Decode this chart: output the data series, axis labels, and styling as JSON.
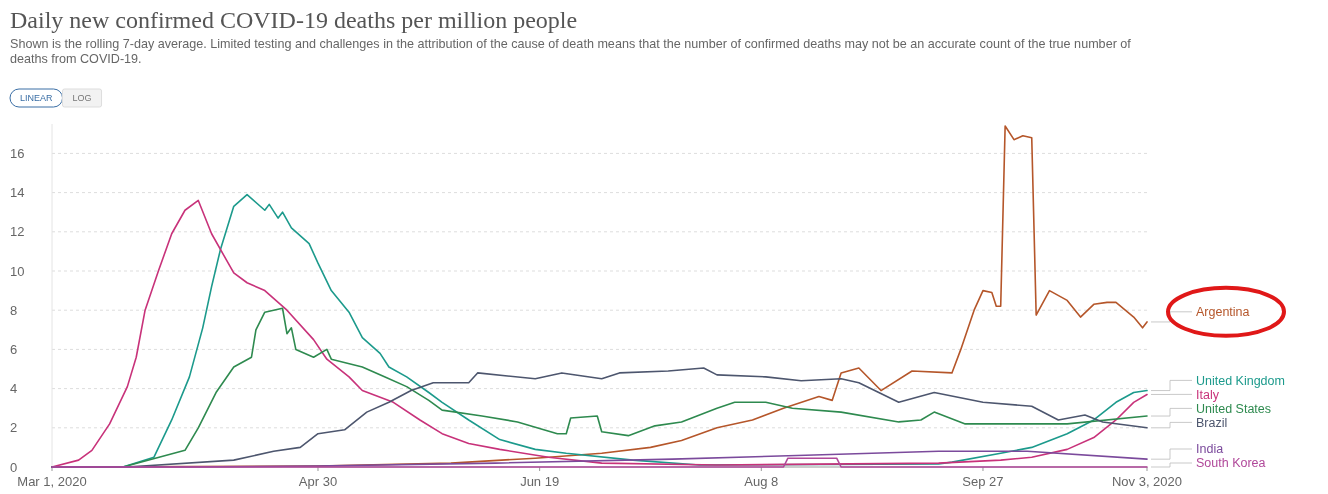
{
  "chart_data": {
    "type": "line",
    "title": "Daily new confirmed COVID-19 deaths per million people",
    "subtitle": "Shown is the rolling 7-day average. Limited testing and challenges in the attribution of the cause of death means that the number of confirmed deaths may not be an accurate count of the true number of deaths from COVID-19.",
    "annotations": [
      "LINEAR",
      "LOG"
    ],
    "xlim": [
      "2020-03-01",
      "2020-11-03"
    ],
    "xticks": [
      {
        "value": "2020-03-01",
        "label": "Mar 1, 2020"
      },
      {
        "value": "2020-04-30",
        "label": "Apr 30"
      },
      {
        "value": "2020-06-19",
        "label": "Jun 19"
      },
      {
        "value": "2020-08-08",
        "label": "Aug 8"
      },
      {
        "value": "2020-09-27",
        "label": "Sep 27"
      },
      {
        "value": "2020-11-03",
        "label": "Nov 3, 2020"
      }
    ],
    "ylim": [
      0,
      17.5
    ],
    "yticks": [
      0,
      2,
      4,
      6,
      8,
      10,
      12,
      14,
      16
    ],
    "grid": "y",
    "series": [
      {
        "name": "Argentina",
        "color": "#b5562a",
        "x": [
          "2020-03-01",
          "2020-04-30",
          "2020-05-30",
          "2020-06-18",
          "2020-07-03",
          "2020-07-14",
          "2020-07-21",
          "2020-07-29",
          "2020-08-06",
          "2020-08-13",
          "2020-08-21",
          "2020-08-24",
          "2020-08-26",
          "2020-08-30",
          "2020-09-04",
          "2020-09-11",
          "2020-09-20",
          "2020-09-22",
          "2020-09-25",
          "2020-09-27",
          "2020-09-29",
          "2020-09-30",
          "2020-10-01",
          "2020-10-02",
          "2020-10-04",
          "2020-10-06",
          "2020-10-08",
          "2020-10-09",
          "2020-10-12",
          "2020-10-16",
          "2020-10-19",
          "2020-10-22",
          "2020-10-25",
          "2020-10-27",
          "2020-10-31",
          "2020-11-02",
          "2020-11-03"
        ],
        "values": [
          0,
          0.05,
          0.2,
          0.45,
          0.7,
          1.0,
          1.35,
          2.0,
          2.4,
          3.0,
          3.6,
          3.4,
          4.8,
          5.05,
          3.9,
          4.9,
          4.8,
          6.0,
          8.0,
          9.0,
          8.9,
          8.2,
          8.2,
          17.4,
          16.7,
          16.9,
          16.8,
          7.75,
          9.0,
          8.5,
          7.65,
          8.3,
          8.4,
          8.4,
          7.65,
          7.1,
          7.4
        ]
      },
      {
        "name": "United Kingdom",
        "color": "#1c9a8c",
        "x": [
          "2020-03-01",
          "2020-03-17",
          "2020-03-24",
          "2020-03-28",
          "2020-04-01",
          "2020-04-04",
          "2020-04-06",
          "2020-04-08",
          "2020-04-11",
          "2020-04-14",
          "2020-04-18",
          "2020-04-19",
          "2020-04-21",
          "2020-04-22",
          "2020-04-24",
          "2020-04-28",
          "2020-04-30",
          "2020-05-03",
          "2020-05-07",
          "2020-05-10",
          "2020-05-14",
          "2020-05-16",
          "2020-05-20",
          "2020-05-25",
          "2020-05-28",
          "2020-06-03",
          "2020-06-10",
          "2020-06-18",
          "2020-06-25",
          "2020-07-10",
          "2020-07-25",
          "2020-09-17",
          "2020-09-20",
          "2020-10-01",
          "2020-10-08",
          "2020-10-16",
          "2020-10-22",
          "2020-10-27",
          "2020-10-31",
          "2020-11-03"
        ],
        "values": [
          0,
          0,
          0.5,
          2.4,
          4.6,
          7.1,
          9.2,
          11.1,
          13.3,
          13.9,
          13.1,
          13.4,
          12.7,
          13.0,
          12.2,
          11.4,
          10.4,
          9.0,
          7.9,
          6.6,
          5.8,
          5.1,
          4.6,
          3.8,
          3.3,
          2.4,
          1.4,
          0.9,
          0.7,
          0.35,
          0.1,
          0.15,
          0.25,
          0.7,
          1.0,
          1.7,
          2.4,
          3.3,
          3.8,
          3.9
        ]
      },
      {
        "name": "Italy",
        "color": "#c8327a",
        "x": [
          "2020-03-01",
          "2020-03-07",
          "2020-03-10",
          "2020-03-14",
          "2020-03-18",
          "2020-03-20",
          "2020-03-22",
          "2020-03-25",
          "2020-03-28",
          "2020-03-31",
          "2020-04-03",
          "2020-04-06",
          "2020-04-11",
          "2020-04-14",
          "2020-04-18",
          "2020-04-23",
          "2020-04-29",
          "2020-05-02",
          "2020-05-07",
          "2020-05-10",
          "2020-05-17",
          "2020-05-23",
          "2020-05-28",
          "2020-06-03",
          "2020-06-10",
          "2020-06-21",
          "2020-07-03",
          "2020-07-29",
          "2020-09-17",
          "2020-10-01",
          "2020-10-08",
          "2020-10-16",
          "2020-10-22",
          "2020-10-27",
          "2020-10-31",
          "2020-11-03"
        ],
        "values": [
          0,
          0.35,
          0.85,
          2.2,
          4.1,
          5.6,
          8.0,
          10.0,
          11.9,
          13.1,
          13.6,
          11.9,
          9.9,
          9.4,
          9.0,
          8.0,
          6.5,
          5.5,
          4.6,
          3.9,
          3.3,
          2.4,
          1.7,
          1.2,
          0.9,
          0.5,
          0.2,
          0.1,
          0.2,
          0.35,
          0.5,
          0.9,
          1.5,
          2.4,
          3.3,
          3.7
        ]
      },
      {
        "name": "United States",
        "color": "#2e8a4f",
        "x": [
          "2020-03-01",
          "2020-03-17",
          "2020-03-31",
          "2020-04-03",
          "2020-04-07",
          "2020-04-11",
          "2020-04-15",
          "2020-04-16",
          "2020-04-18",
          "2020-04-22",
          "2020-04-23",
          "2020-04-24",
          "2020-04-25",
          "2020-04-29",
          "2020-05-02",
          "2020-05-03",
          "2020-05-10",
          "2020-05-15",
          "2020-05-20",
          "2020-05-25",
          "2020-05-28",
          "2020-06-06",
          "2020-06-14",
          "2020-06-23",
          "2020-06-25",
          "2020-06-26",
          "2020-07-02",
          "2020-07-03",
          "2020-07-09",
          "2020-07-15",
          "2020-07-21",
          "2020-07-29",
          "2020-08-02",
          "2020-08-09",
          "2020-08-15",
          "2020-08-26",
          "2020-09-08",
          "2020-09-13",
          "2020-09-16",
          "2020-09-23",
          "2020-10-05",
          "2020-10-16",
          "2020-11-03"
        ],
        "values": [
          0,
          0,
          0.85,
          2.0,
          3.8,
          5.1,
          5.6,
          7.0,
          7.9,
          8.1,
          6.8,
          7.1,
          6.0,
          5.6,
          6.0,
          5.5,
          5.1,
          4.6,
          4.1,
          3.4,
          2.9,
          2.6,
          2.3,
          1.7,
          1.7,
          2.5,
          2.6,
          1.8,
          1.6,
          2.1,
          2.3,
          3.0,
          3.3,
          3.3,
          3.0,
          2.8,
          2.3,
          2.4,
          2.8,
          2.2,
          2.2,
          2.2,
          2.6
        ]
      },
      {
        "name": "Brazil",
        "color": "#4d566e",
        "x": [
          "2020-03-01",
          "2020-03-18",
          "2020-04-11",
          "2020-04-20",
          "2020-04-26",
          "2020-04-30",
          "2020-05-06",
          "2020-05-11",
          "2020-05-16",
          "2020-05-21",
          "2020-05-26",
          "2020-06-03",
          "2020-06-05",
          "2020-06-18",
          "2020-06-24",
          "2020-07-03",
          "2020-07-07",
          "2020-07-18",
          "2020-07-26",
          "2020-07-29",
          "2020-08-09",
          "2020-08-17",
          "2020-08-26",
          "2020-08-30",
          "2020-09-08",
          "2020-09-16",
          "2020-09-27",
          "2020-10-08",
          "2020-10-14",
          "2020-10-20",
          "2020-10-24",
          "2020-11-03"
        ],
        "values": [
          0,
          0,
          0.35,
          0.8,
          1.0,
          1.7,
          1.9,
          2.8,
          3.3,
          3.9,
          4.3,
          4.3,
          4.8,
          4.5,
          4.8,
          4.5,
          4.8,
          4.9,
          5.05,
          4.7,
          4.6,
          4.4,
          4.5,
          4.3,
          3.3,
          3.8,
          3.3,
          3.1,
          2.4,
          2.65,
          2.3,
          2.0
        ]
      },
      {
        "name": "India",
        "color": "#7b4a9c",
        "x": [
          "2020-03-01",
          "2020-03-31",
          "2020-04-30",
          "2020-06-09",
          "2020-07-19",
          "2020-08-18",
          "2020-09-17",
          "2020-10-07",
          "2020-11-03"
        ],
        "values": [
          0,
          0,
          0.05,
          0.2,
          0.4,
          0.6,
          0.8,
          0.8,
          0.4
        ]
      },
      {
        "name": "South Korea",
        "color": "#b0489a",
        "x": [
          "2020-03-01",
          "2020-08-13",
          "2020-08-14",
          "2020-08-25",
          "2020-08-26",
          "2020-11-03"
        ],
        "values": [
          0,
          0,
          0.45,
          0.45,
          0,
          0
        ]
      }
    ]
  }
}
